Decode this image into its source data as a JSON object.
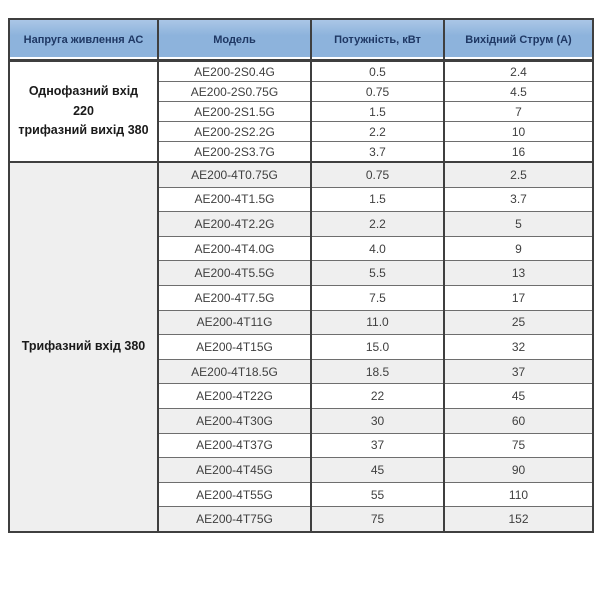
{
  "colors": {
    "header_bg": "#8db3dc",
    "header_bg_light": "#aac6e6",
    "header_text": "#1f3864",
    "body_text": "#3f3f3f",
    "row_alt_bg": "#efefef",
    "grid_dark": "#3f3f3f",
    "grid_light": "#6e6e6e"
  },
  "table": {
    "headers": [
      "Напруга живлення АС",
      "Модель",
      "Потужність, кВт",
      "Вихідний Струм (А)"
    ],
    "groups": [
      {
        "label_lines": [
          "Однофазний вхід 220",
          "трифазний вихід 380"
        ],
        "label_shaded": false,
        "zebra_striped": false,
        "rows": [
          {
            "model": "AE200-2S0.4G",
            "power": "0.5",
            "current": "2.4"
          },
          {
            "model": "AE200-2S0.75G",
            "power": "0.75",
            "current": "4.5"
          },
          {
            "model": "AE200-2S1.5G",
            "power": "1.5",
            "current": "7"
          },
          {
            "model": "AE200-2S2.2G",
            "power": "2.2",
            "current": "10"
          },
          {
            "model": "AE200-2S3.7G",
            "power": "3.7",
            "current": "16"
          }
        ]
      },
      {
        "label_lines": [
          "Трифазний вхід 380"
        ],
        "label_shaded": true,
        "zebra_striped": true,
        "rows": [
          {
            "model": "AE200-4T0.75G",
            "power": "0.75",
            "current": "2.5"
          },
          {
            "model": "AE200-4T1.5G",
            "power": "1.5",
            "current": "3.7"
          },
          {
            "model": "AE200-4T2.2G",
            "power": "2.2",
            "current": "5"
          },
          {
            "model": "AE200-4T4.0G",
            "power": "4.0",
            "current": "9"
          },
          {
            "model": "AE200-4T5.5G",
            "power": "5.5",
            "current": "13"
          },
          {
            "model": "AE200-4T7.5G",
            "power": "7.5",
            "current": "17"
          },
          {
            "model": "AE200-4T11G",
            "power": "11.0",
            "current": "25"
          },
          {
            "model": "AE200-4T15G",
            "power": "15.0",
            "current": "32"
          },
          {
            "model": "AE200-4T18.5G",
            "power": "18.5",
            "current": "37"
          },
          {
            "model": "AE200-4T22G",
            "power": "22",
            "current": "45"
          },
          {
            "model": "AE200-4T30G",
            "power": "30",
            "current": "60"
          },
          {
            "model": "AE200-4T37G",
            "power": "37",
            "current": "75"
          },
          {
            "model": "AE200-4T45G",
            "power": "45",
            "current": "90"
          },
          {
            "model": "AE200-4T55G",
            "power": "55",
            "current": "110"
          },
          {
            "model": "AE200-4T75G",
            "power": "75",
            "current": "152"
          }
        ]
      }
    ]
  }
}
